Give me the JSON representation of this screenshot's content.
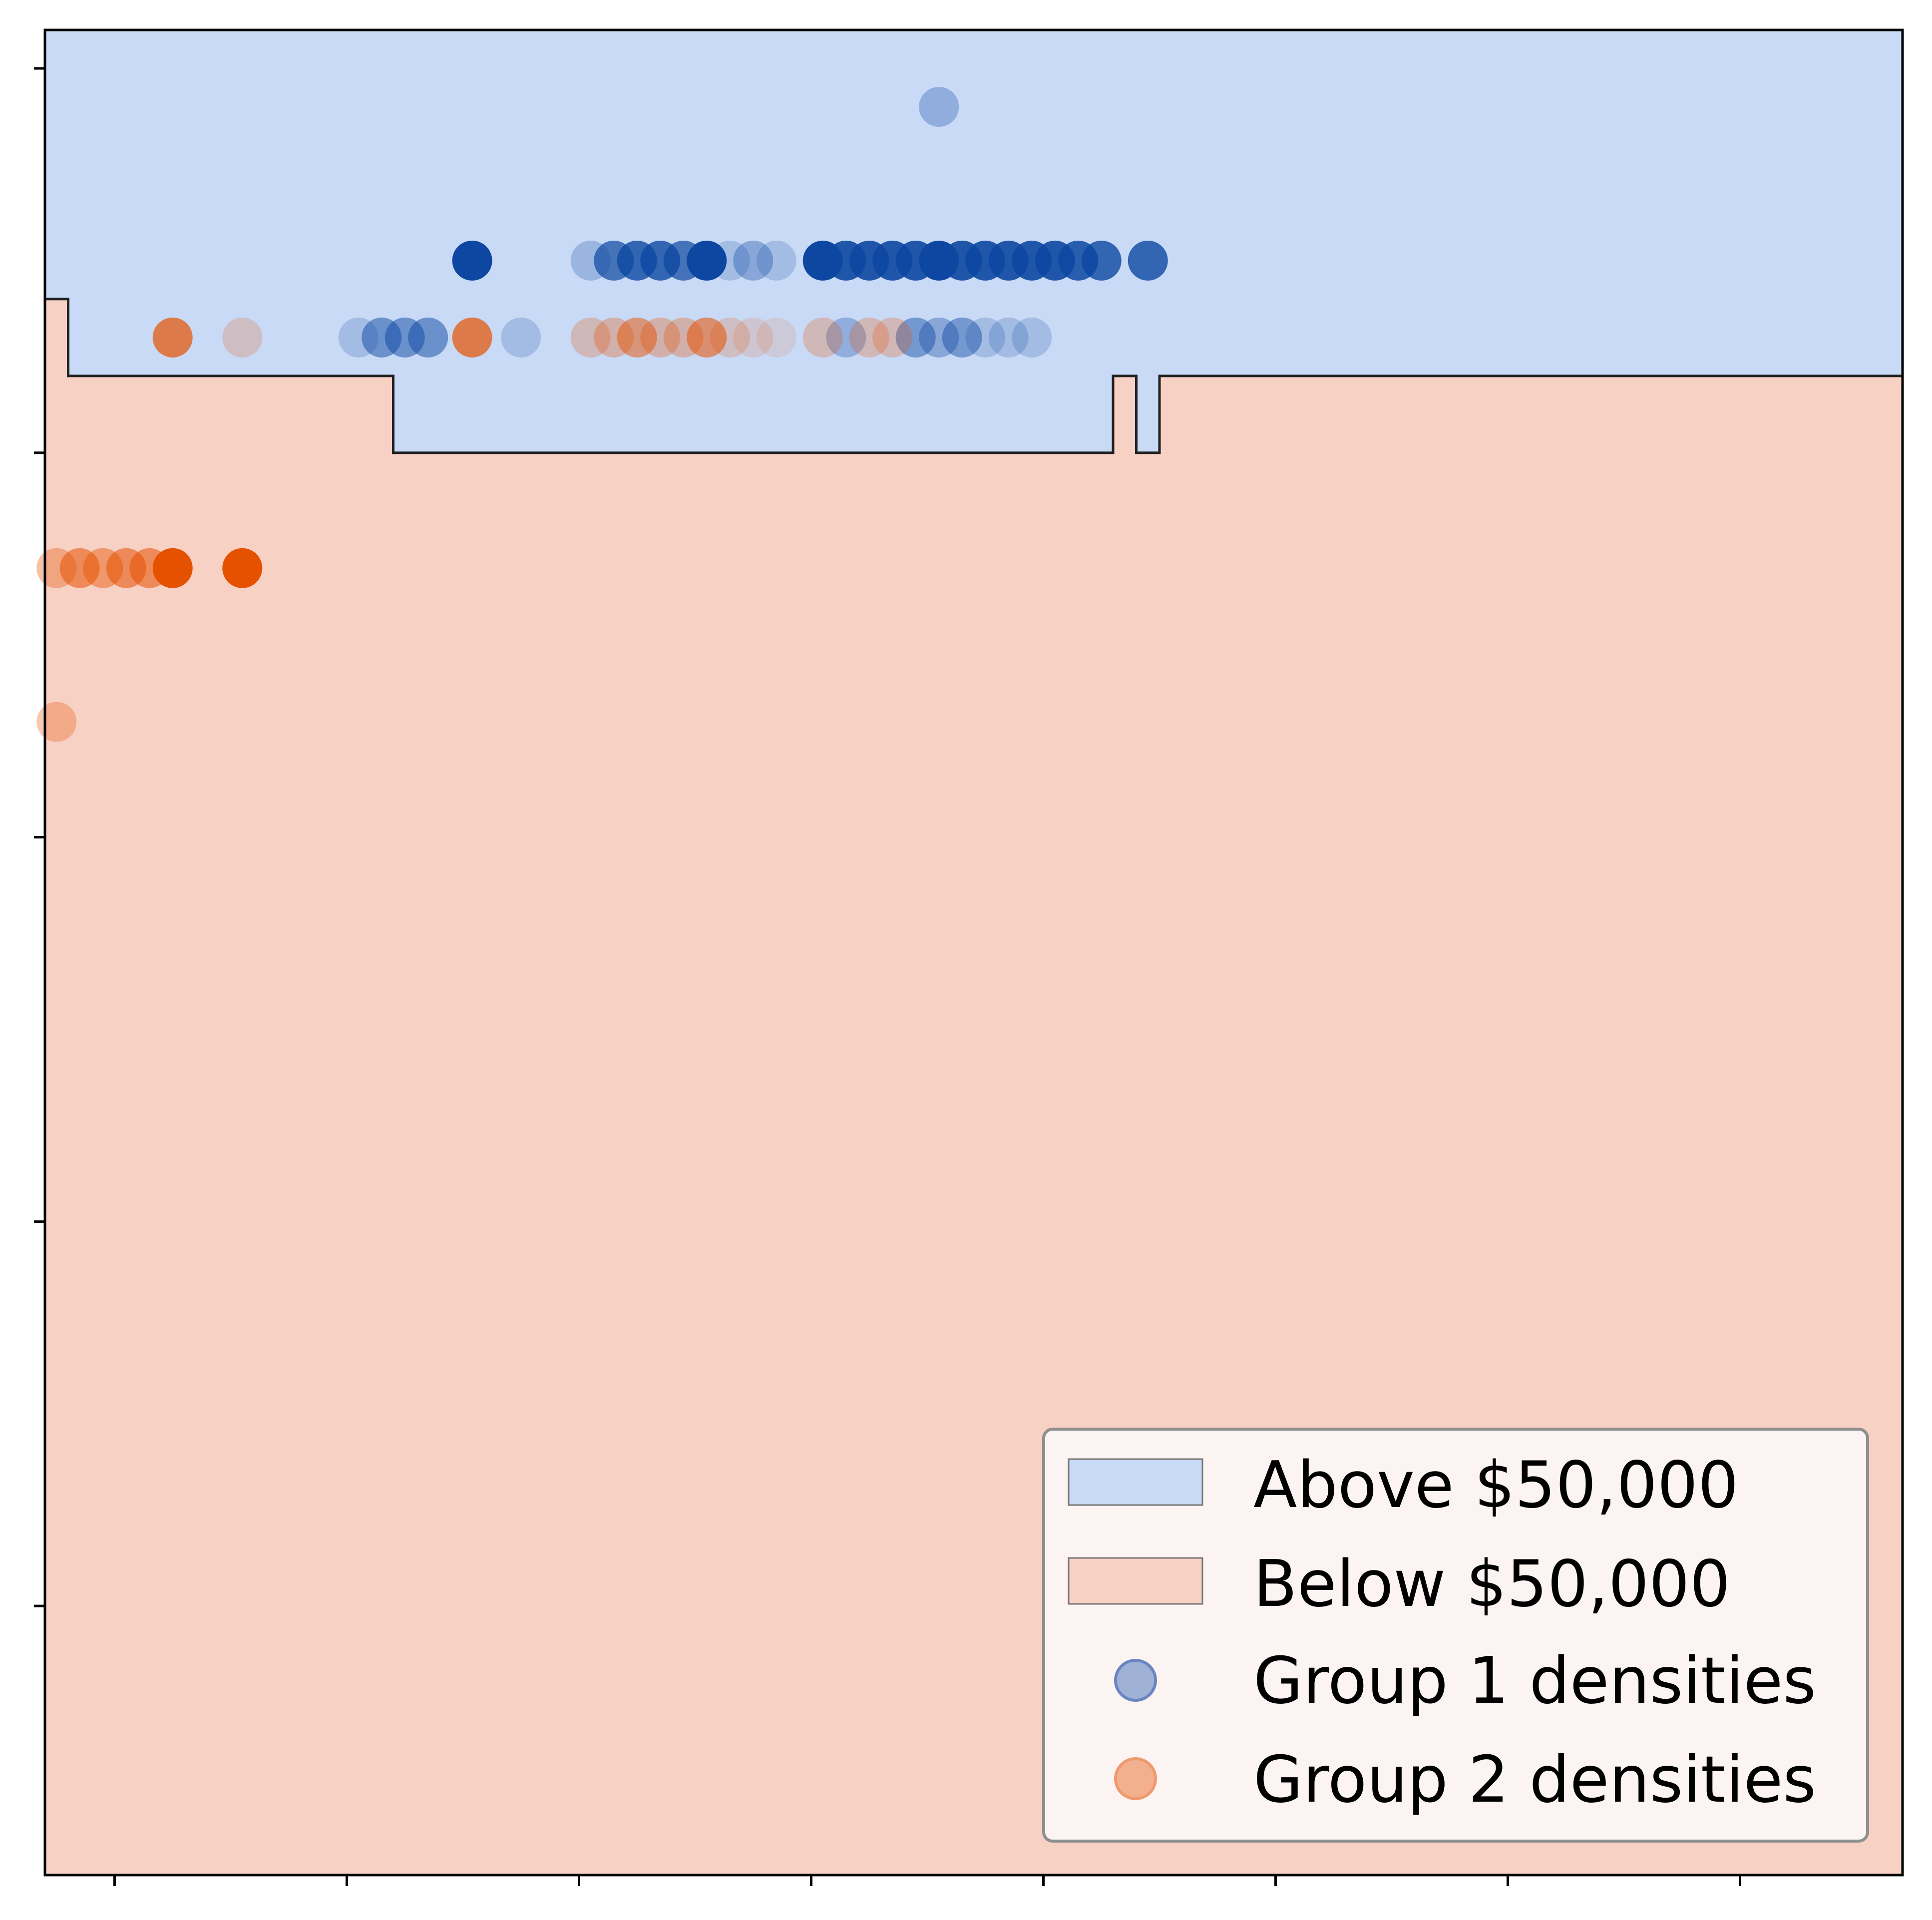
{
  "chart_data": {
    "type": "scatter",
    "title": "",
    "xlabel": "",
    "ylabel": "",
    "xlim": [
      0,
      80
    ],
    "ylim": [
      -4.7,
      0.1
    ],
    "x_ticks": [
      3,
      13,
      23,
      33,
      43,
      53,
      63,
      73
    ],
    "y_ticks": [
      -4,
      -3,
      -2,
      -1,
      0
    ],
    "grid": false,
    "legend_position": "lower-right",
    "legend": [
      {
        "label": "Above $50,000",
        "kind": "patch",
        "color": "#c9daf6"
      },
      {
        "label": "Below $50,000",
        "kind": "patch",
        "color": "#f8d1c5"
      },
      {
        "label": "Group 1 densities",
        "kind": "marker",
        "color": "#a0b1d6",
        "edge": "#6a86c2"
      },
      {
        "label": "Group 2 densities",
        "kind": "marker",
        "color": "#f3b08f",
        "edge": "#ef9a6e"
      }
    ],
    "regions": [
      {
        "name": "Above $50,000",
        "color": "#c9daf6",
        "boundary": [
          [
            0,
            -0.6
          ],
          [
            1,
            -0.6
          ],
          [
            1,
            -0.8
          ],
          [
            15,
            -0.8
          ],
          [
            15,
            -1.0
          ],
          [
            46,
            -1.0
          ],
          [
            46,
            -0.8
          ],
          [
            47,
            -0.8
          ],
          [
            47,
            -1.0
          ],
          [
            48,
            -1.0
          ],
          [
            48,
            -0.8
          ],
          [
            80,
            -0.8
          ]
        ]
      },
      {
        "name": "Below $50,000",
        "color": "#f8d1c5"
      }
    ],
    "series": [
      {
        "name": "Group 1 densities",
        "color": "#0d47a1",
        "points": [
          {
            "x": 38.5,
            "y": -0.1,
            "alpha": 0.3
          },
          {
            "x": 18.4,
            "y": -0.5,
            "alpha": 1.0
          },
          {
            "x": 23.5,
            "y": -0.5,
            "alpha": 0.25
          },
          {
            "x": 24.5,
            "y": -0.5,
            "alpha": 0.7
          },
          {
            "x": 25.5,
            "y": -0.5,
            "alpha": 0.8
          },
          {
            "x": 26.5,
            "y": -0.5,
            "alpha": 0.8
          },
          {
            "x": 27.5,
            "y": -0.5,
            "alpha": 0.7
          },
          {
            "x": 28.5,
            "y": -0.5,
            "alpha": 1.0
          },
          {
            "x": 29.5,
            "y": -0.5,
            "alpha": 0.2
          },
          {
            "x": 30.5,
            "y": -0.5,
            "alpha": 0.35
          },
          {
            "x": 31.5,
            "y": -0.5,
            "alpha": 0.2
          },
          {
            "x": 33.5,
            "y": -0.5,
            "alpha": 1.0
          },
          {
            "x": 34.5,
            "y": -0.5,
            "alpha": 0.9
          },
          {
            "x": 35.5,
            "y": -0.5,
            "alpha": 0.9
          },
          {
            "x": 36.5,
            "y": -0.5,
            "alpha": 0.9
          },
          {
            "x": 37.5,
            "y": -0.5,
            "alpha": 0.9
          },
          {
            "x": 38.5,
            "y": -0.5,
            "alpha": 1.0
          },
          {
            "x": 39.5,
            "y": -0.5,
            "alpha": 0.9
          },
          {
            "x": 40.5,
            "y": -0.5,
            "alpha": 0.9
          },
          {
            "x": 41.5,
            "y": -0.5,
            "alpha": 0.9
          },
          {
            "x": 42.5,
            "y": -0.5,
            "alpha": 0.9
          },
          {
            "x": 43.5,
            "y": -0.5,
            "alpha": 0.9
          },
          {
            "x": 44.5,
            "y": -0.5,
            "alpha": 0.85
          },
          {
            "x": 45.5,
            "y": -0.5,
            "alpha": 0.8
          },
          {
            "x": 47.5,
            "y": -0.5,
            "alpha": 0.8
          },
          {
            "x": 13.5,
            "y": -0.7,
            "alpha": 0.2
          },
          {
            "x": 14.5,
            "y": -0.7,
            "alpha": 0.5
          },
          {
            "x": 15.5,
            "y": -0.7,
            "alpha": 0.5
          },
          {
            "x": 16.5,
            "y": -0.7,
            "alpha": 0.5
          },
          {
            "x": 20.5,
            "y": -0.7,
            "alpha": 0.2
          },
          {
            "x": 34.5,
            "y": -0.7,
            "alpha": 0.3
          },
          {
            "x": 37.5,
            "y": -0.7,
            "alpha": 0.45
          },
          {
            "x": 38.5,
            "y": -0.7,
            "alpha": 0.35
          },
          {
            "x": 39.5,
            "y": -0.7,
            "alpha": 0.45
          },
          {
            "x": 40.5,
            "y": -0.7,
            "alpha": 0.2
          },
          {
            "x": 41.5,
            "y": -0.7,
            "alpha": 0.2
          },
          {
            "x": 42.5,
            "y": -0.7,
            "alpha": 0.2
          }
        ]
      },
      {
        "name": "Group 2 densities",
        "color": "#e65100",
        "points": [
          {
            "x": 5.5,
            "y": -0.7,
            "alpha": 0.7
          },
          {
            "x": 8.5,
            "y": -0.7,
            "alpha": 0.2
          },
          {
            "x": 18.4,
            "y": -0.7,
            "alpha": 0.7
          },
          {
            "x": 23.5,
            "y": -0.7,
            "alpha": 0.25
          },
          {
            "x": 24.5,
            "y": -0.7,
            "alpha": 0.3
          },
          {
            "x": 25.5,
            "y": -0.7,
            "alpha": 0.5
          },
          {
            "x": 26.5,
            "y": -0.7,
            "alpha": 0.3
          },
          {
            "x": 27.5,
            "y": -0.7,
            "alpha": 0.3
          },
          {
            "x": 28.5,
            "y": -0.7,
            "alpha": 0.55
          },
          {
            "x": 29.5,
            "y": -0.7,
            "alpha": 0.2
          },
          {
            "x": 30.5,
            "y": -0.7,
            "alpha": 0.15
          },
          {
            "x": 31.5,
            "y": -0.7,
            "alpha": 0.12
          },
          {
            "x": 33.5,
            "y": -0.7,
            "alpha": 0.25
          },
          {
            "x": 35.5,
            "y": -0.7,
            "alpha": 0.25
          },
          {
            "x": 36.5,
            "y": -0.7,
            "alpha": 0.25
          },
          {
            "x": 0.5,
            "y": -1.3,
            "alpha": 0.35
          },
          {
            "x": 1.5,
            "y": -1.3,
            "alpha": 0.55
          },
          {
            "x": 2.5,
            "y": -1.3,
            "alpha": 0.45
          },
          {
            "x": 3.5,
            "y": -1.3,
            "alpha": 0.55
          },
          {
            "x": 4.5,
            "y": -1.3,
            "alpha": 0.55
          },
          {
            "x": 5.5,
            "y": -1.3,
            "alpha": 1.0
          },
          {
            "x": 8.5,
            "y": -1.3,
            "alpha": 1.0
          },
          {
            "x": 0.5,
            "y": -1.7,
            "alpha": 0.3
          }
        ]
      }
    ]
  }
}
